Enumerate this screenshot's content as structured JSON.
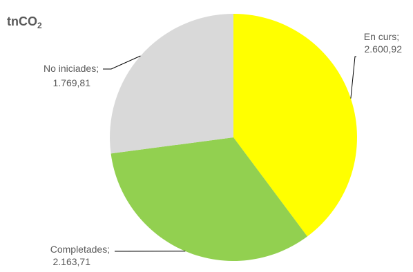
{
  "chart_data": {
    "type": "pie",
    "title": "tnCO",
    "title_subscript": "2",
    "slices": [
      {
        "name": "En curs",
        "label": "En curs;",
        "value_text": "2.600,92",
        "value": 2600.92,
        "color": "#ffff00"
      },
      {
        "name": "Completades",
        "label": "Completades;",
        "value_text": "2.163,71",
        "value": 2163.71,
        "color": "#92d050"
      },
      {
        "name": "No iniciades",
        "label": "No iniciades;",
        "value_text": "1.769,81",
        "value": 1769.81,
        "color": "#d9d9d9"
      }
    ],
    "legend": "none"
  }
}
